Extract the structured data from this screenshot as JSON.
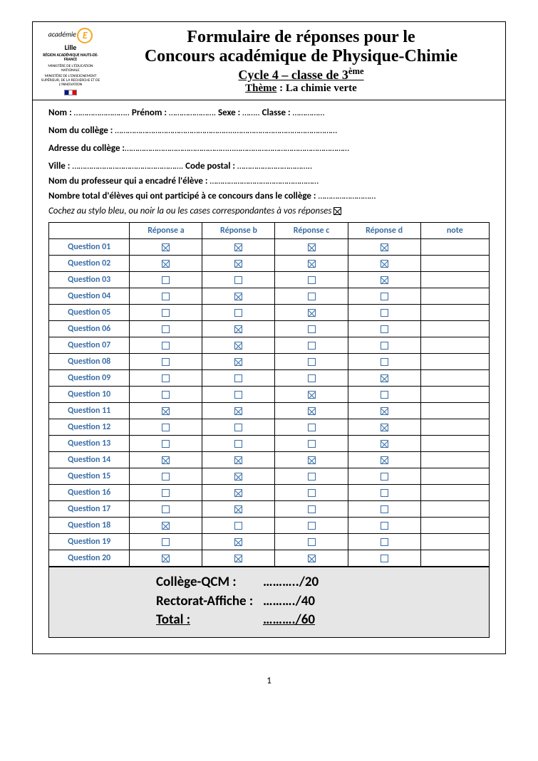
{
  "logo": {
    "academie_text": "académie",
    "academie_city": "Lille",
    "region": "RÉGION ACADÉMIQUE HAUTS-DE-FRANCE",
    "ministere1": "MINISTÈRE DE L'ÉDUCATION NATIONALE",
    "ministere2": "MINISTÈRE DE L'ENSEIGNEMENT SUPÉRIEUR, DE LA RECHERCHE ET DE L'INNOVATION"
  },
  "title": {
    "line1": "Formulaire de réponses pour le",
    "line2": "Concours académique de Physique-Chimie",
    "line3a": "Cycle 4 – classe de 3",
    "line3b": "ème",
    "line4_prefix": "Thème",
    "line4_rest": " : La chimie verte"
  },
  "info": {
    "nom": "Nom : ",
    "prenom": " Prénom : ",
    "sexe": " Sexe : ",
    "classe": " Classe : ",
    "nom_college": "Nom du collège : ",
    "adresse_college": "Adresse du collège :",
    "ville": "Ville : ",
    "code_postal": " Code postal : ",
    "prof": "Nom du professeur qui a encadré l'élève : ",
    "nb_eleves": "Nombre total d'élèves qui ont participé à ce concours dans le collège : ",
    "instruction": "Cochez au stylo bleu, ou noir la ou les cases correspondantes à vos réponses "
  },
  "dots": {
    "d1": "……………………..",
    "d2": "………………….",
    "d3": "……..",
    "d4": "……………",
    "long": "………………………………………………..…………………………………………",
    "long2": "…………………………………………...………………………………………………",
    "d5": "…………………………………………….",
    "d6": "……………………………..",
    "d7": "……………………………………………",
    "d8": "………………………"
  },
  "table": {
    "headers": [
      "",
      "Réponse a",
      "Réponse b",
      "Réponse c",
      "Réponse d",
      "note"
    ],
    "rows": [
      {
        "label": "Question 01",
        "a": true,
        "b": true,
        "c": true,
        "d": true
      },
      {
        "label": "Question 02",
        "a": true,
        "b": true,
        "c": true,
        "d": true
      },
      {
        "label": "Question 03",
        "a": false,
        "b": false,
        "c": false,
        "d": true
      },
      {
        "label": "Question 04",
        "a": false,
        "b": true,
        "c": false,
        "d": false
      },
      {
        "label": "Question 05",
        "a": false,
        "b": false,
        "c": true,
        "d": false
      },
      {
        "label": "Question 06",
        "a": false,
        "b": true,
        "c": false,
        "d": false
      },
      {
        "label": "Question 07",
        "a": false,
        "b": true,
        "c": false,
        "d": false
      },
      {
        "label": "Question 08",
        "a": false,
        "b": true,
        "c": false,
        "d": false
      },
      {
        "label": "Question 09",
        "a": false,
        "b": false,
        "c": false,
        "d": true
      },
      {
        "label": "Question 10",
        "a": false,
        "b": false,
        "c": true,
        "d": false
      },
      {
        "label": "Question 11",
        "a": true,
        "b": true,
        "c": true,
        "d": true
      },
      {
        "label": "Question 12",
        "a": false,
        "b": false,
        "c": false,
        "d": true
      },
      {
        "label": "Question 13",
        "a": false,
        "b": false,
        "c": false,
        "d": true
      },
      {
        "label": "Question 14",
        "a": true,
        "b": true,
        "c": true,
        "d": true
      },
      {
        "label": "Question 15",
        "a": false,
        "b": true,
        "c": false,
        "d": false
      },
      {
        "label": "Question 16",
        "a": false,
        "b": true,
        "c": false,
        "d": false
      },
      {
        "label": "Question 17",
        "a": false,
        "b": true,
        "c": false,
        "d": false
      },
      {
        "label": "Question 18",
        "a": true,
        "b": false,
        "c": false,
        "d": false
      },
      {
        "label": "Question 19",
        "a": false,
        "b": true,
        "c": false,
        "d": false
      },
      {
        "label": "Question 20",
        "a": true,
        "b": true,
        "c": true,
        "d": false
      }
    ]
  },
  "scores": {
    "row1_label": "Collège-QCM :",
    "row1_value": "………../20",
    "row2_label": "Rectorat-Affiche :",
    "row2_value": "………./40",
    "row3_label": "Total :",
    "row3_value": "………./60"
  },
  "page_number": "1",
  "colors": {
    "accent": "#3a6ea5",
    "score_bg": "#e6e6e6",
    "logo_orange": "#f5a623"
  }
}
